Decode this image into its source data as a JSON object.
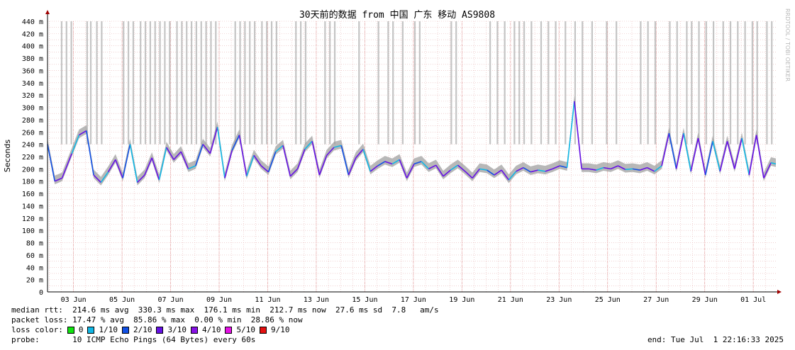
{
  "chart_data": {
    "type": "line",
    "title": "30天前的数据 from 中国 广东 移动 AS9808",
    "ylabel": "Seconds",
    "watermark": "RRDTOOL / TOBI OETIKER",
    "ylim": [
      0,
      0.44
    ],
    "yticks": [
      "0",
      "20 m",
      "40 m",
      "60 m",
      "80 m",
      "100 m",
      "120 m",
      "140 m",
      "160 m",
      "180 m",
      "200 m",
      "220 m",
      "240 m",
      "260 m",
      "280 m",
      "300 m",
      "320 m",
      "340 m",
      "360 m",
      "380 m",
      "400 m",
      "420 m",
      "440 m"
    ],
    "xticks": [
      "03 Jun",
      "05 Jun",
      "07 Jun",
      "09 Jun",
      "11 Jun",
      "13 Jun",
      "15 Jun",
      "17 Jun",
      "19 Jun",
      "21 Jun",
      "23 Jun",
      "25 Jun",
      "27 Jun",
      "29 Jun",
      "01 Jul"
    ],
    "x_range_days": [
      "2025-06-01 22:16",
      "2025-07-01 22:16"
    ],
    "grid": true,
    "series": [
      {
        "name": "median rtt",
        "unit": "ms",
        "x_days": [
          0,
          0.3,
          0.6,
          1.0,
          1.3,
          1.6,
          1.9,
          2.2,
          2.5,
          2.8,
          3.1,
          3.4,
          3.7,
          4.0,
          4.3,
          4.6,
          4.9,
          5.2,
          5.5,
          5.8,
          6.1,
          6.4,
          6.7,
          7.0,
          7.3,
          7.6,
          7.9,
          8.2,
          8.5,
          8.8,
          9.1,
          9.4,
          9.7,
          10.0,
          10.3,
          10.6,
          10.9,
          11.2,
          11.5,
          11.8,
          12.1,
          12.4,
          12.7,
          13.0,
          13.3,
          13.6,
          13.9,
          14.2,
          14.5,
          14.8,
          15.1,
          15.4,
          15.7,
          16.0,
          16.3,
          16.6,
          16.9,
          17.2,
          17.5,
          17.8,
          18.1,
          18.4,
          18.7,
          19.0,
          19.3,
          19.6,
          19.9,
          20.2,
          20.5,
          20.8,
          21.1,
          21.4,
          21.7,
          22.0,
          22.3,
          22.6,
          22.9,
          23.2,
          23.5,
          23.8,
          24.1,
          24.4,
          24.7,
          25.0,
          25.3,
          25.6,
          25.9,
          26.2,
          26.5,
          26.8,
          27.1,
          27.4,
          27.7,
          28.0,
          28.3,
          28.6,
          28.9,
          29.2,
          29.5,
          29.8,
          30.0
        ],
        "y_ms": [
          240,
          180,
          185,
          225,
          255,
          262,
          190,
          178,
          195,
          215,
          185,
          240,
          178,
          190,
          218,
          182,
          235,
          215,
          228,
          200,
          205,
          240,
          225,
          268,
          185,
          230,
          255,
          188,
          222,
          205,
          195,
          228,
          238,
          188,
          200,
          232,
          245,
          190,
          222,
          235,
          238,
          190,
          218,
          232,
          196,
          205,
          212,
          208,
          215,
          185,
          208,
          212,
          200,
          206,
          188,
          198,
          206,
          196,
          185,
          200,
          198,
          190,
          198,
          182,
          196,
          202,
          195,
          198,
          196,
          200,
          205,
          202,
          310,
          200,
          200,
          198,
          202,
          200,
          205,
          199,
          200,
          198,
          202,
          196,
          205,
          258,
          200,
          258,
          196,
          250,
          190,
          245,
          196,
          245,
          200,
          250,
          190,
          255,
          185,
          210,
          208
        ]
      },
      {
        "name": "loss color 0",
        "color": "#11e511"
      },
      {
        "name": "loss color 1/10",
        "color": "#11b7e5"
      },
      {
        "name": "loss color 2/10",
        "color": "#1150e5"
      },
      {
        "name": "loss color 3/10",
        "color": "#6611e5"
      },
      {
        "name": "loss color 4/10",
        "color": "#8711e5"
      },
      {
        "name": "loss color 5/10",
        "color": "#e511e5"
      },
      {
        "name": "loss color 9/10",
        "color": "#e51111"
      }
    ],
    "packet_loss_spikes_days": [
      0.55,
      0.75,
      0.95,
      1.6,
      1.75,
      2.0,
      2.2,
      3.1,
      3.3,
      3.5,
      3.8,
      4.0,
      4.2,
      4.4,
      4.6,
      4.8,
      5.0,
      5.3,
      5.5,
      5.7,
      5.9,
      6.1,
      6.3,
      6.5,
      6.7,
      6.9,
      7.7,
      7.9,
      8.1,
      8.3,
      8.5,
      8.8,
      9.0,
      9.2,
      9.4,
      10.2,
      10.4,
      10.6,
      11.4,
      11.6,
      11.8,
      12.8,
      13.6,
      14.0,
      14.2,
      14.6,
      15.1,
      15.3,
      16.6,
      16.8,
      18.2,
      18.5,
      18.8,
      19.2,
      19.4,
      19.6,
      19.9,
      20.3,
      20.6,
      20.9,
      21.3,
      21.7,
      22.0,
      22.4,
      23.0,
      23.4,
      24.4,
      24.7,
      25.0,
      25.6,
      25.9,
      26.3,
      26.5,
      26.8,
      27.1,
      27.4,
      27.8,
      28.1,
      28.4,
      28.7,
      29.0,
      29.2,
      29.6,
      29.8
    ]
  },
  "stats": {
    "median_rtt": "median rtt:  214.6 ms avg  330.3 ms max  176.1 ms min  212.7 ms now  27.6 ms sd  7.8   am/s",
    "packet_loss": "packet loss: 17.47 % avg  85.86 % max  0.00 % min  28.86 % now",
    "loss_color_label": "loss color:",
    "loss_legend": [
      "0",
      "1/10",
      "2/10",
      "3/10",
      "4/10",
      "5/10",
      "9/10"
    ],
    "probe": "probe:       10 ICMP Echo Pings (64 Bytes) every 60s",
    "end": "end: Tue Jul  1 22:16:33 2025"
  }
}
